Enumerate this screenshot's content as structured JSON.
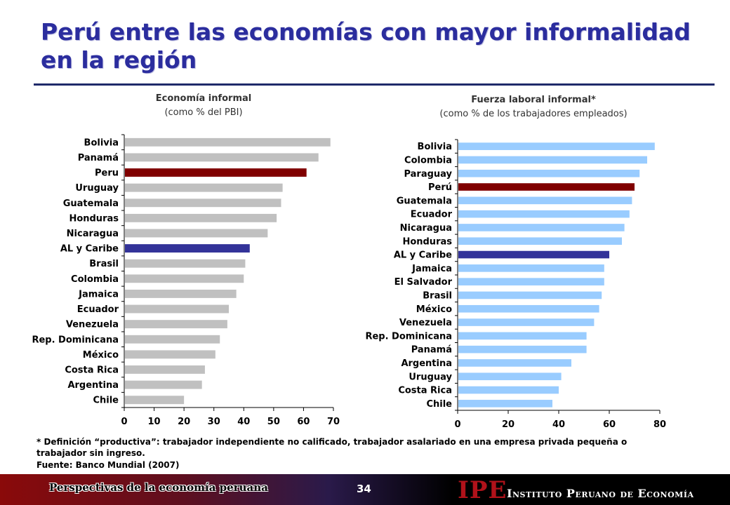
{
  "slide": {
    "title": "Perú entre las economías con mayor informalidad en la región",
    "footnote": "* Definición “productiva”: trabajador independiente no calificado, trabajador asalariado en una empresa privada pequeña o trabajador sin ingreso.",
    "source": "Fuente: Banco Mundial (2007)",
    "footer_left": "Perspectivas de la economía peruana",
    "page_number": "34",
    "logo_text": "IPE",
    "institute_name": "Instituto Peruano de Economía"
  },
  "colors": {
    "default_bar_left": "#c0c0c0",
    "default_bar_right": "#99ccff",
    "peru": "#800000",
    "region": "#333399"
  },
  "chart_data": [
    {
      "type": "bar",
      "orientation": "horizontal",
      "title": "Economía informal",
      "subtitle": "(como % del PBI)",
      "categories": [
        "Bolivia",
        "Panamá",
        "Peru",
        "Uruguay",
        "Guatemala",
        "Honduras",
        "Nicaragua",
        "AL y Caribe",
        "Brasil",
        "Colombia",
        "Jamaica",
        "Ecuador",
        "Venezuela",
        "Rep. Dominicana",
        "México",
        "Costa Rica",
        "Argentina",
        "Chile"
      ],
      "values": [
        69,
        65,
        61,
        53,
        52.5,
        51,
        48,
        42,
        40.5,
        40,
        37.5,
        35,
        34.5,
        32,
        30.5,
        27,
        26,
        20
      ],
      "highlight": {
        "Peru": "peru",
        "AL y Caribe": "region"
      },
      "xlim": [
        0,
        70
      ],
      "xticks": [
        "0",
        "10",
        "20",
        "30",
        "40",
        "50",
        "60",
        "70"
      ],
      "grid": false
    },
    {
      "type": "bar",
      "orientation": "horizontal",
      "title": "Fuerza laboral informal*",
      "subtitle": "(como % de los trabajadores empleados)",
      "categories": [
        "Bolivia",
        "Colombia",
        "Paraguay",
        "Perú",
        "Guatemala",
        "Ecuador",
        "Nicaragua",
        "Honduras",
        "AL y Caribe",
        "Jamaica",
        "El Salvador",
        "Brasil",
        "México",
        "Venezuela",
        "Rep. Dominicana",
        "Panamá",
        "Argentina",
        "Uruguay",
        "Costa Rica",
        "Chile"
      ],
      "values": [
        78,
        75,
        72,
        70,
        69,
        68,
        66,
        65,
        60,
        58,
        58,
        57,
        56,
        54,
        51,
        51,
        45,
        41,
        40,
        37.5
      ],
      "highlight": {
        "Perú": "peru",
        "AL y Caribe": "region"
      },
      "xlim": [
        0,
        80
      ],
      "xticks": [
        "0",
        "20",
        "40",
        "60",
        "80"
      ],
      "grid": false
    }
  ]
}
